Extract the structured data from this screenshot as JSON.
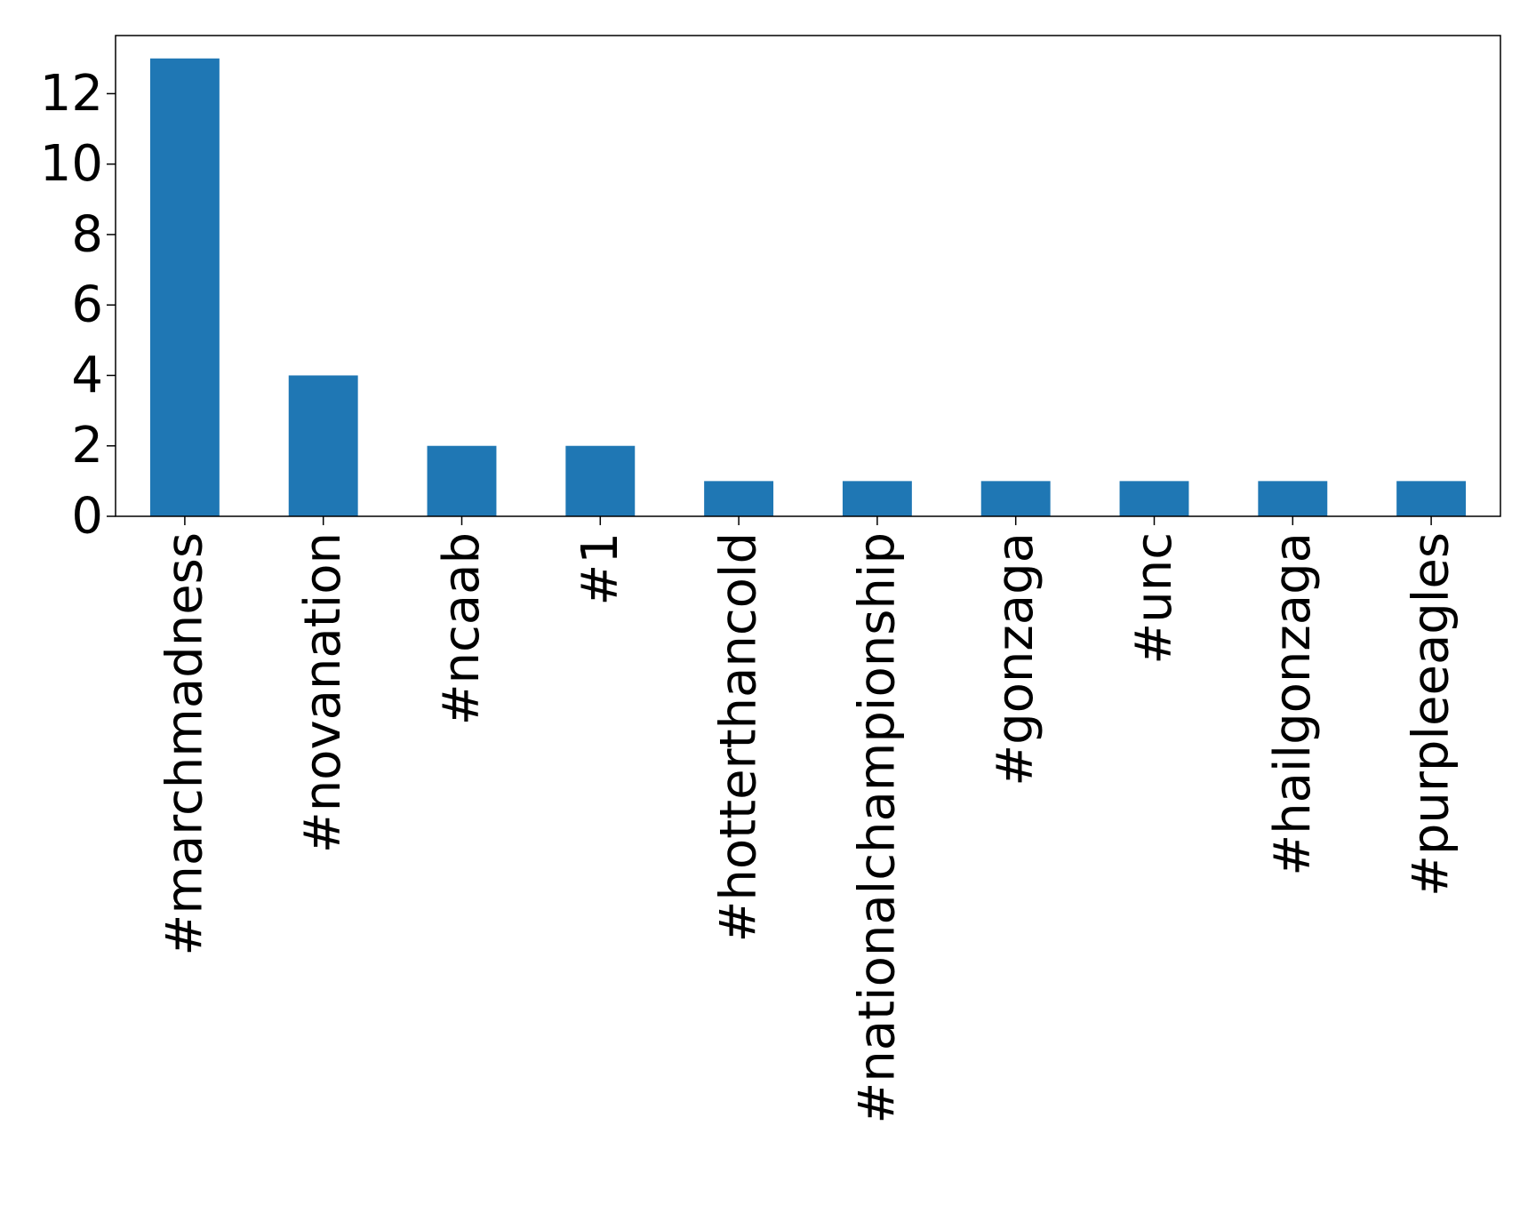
{
  "chart_data": {
    "type": "bar",
    "categories": [
      "#marchmadness",
      "#novanation",
      "#ncaab",
      "#1",
      "#hotterthancold",
      "#nationalchampionship",
      "#gonzaga",
      "#unc",
      "#hailgonzaga",
      "#purpleeagles"
    ],
    "values": [
      13,
      4,
      2,
      2,
      1,
      1,
      1,
      1,
      1,
      1
    ],
    "title": "",
    "xlabel": "",
    "ylabel": "",
    "ylim": [
      0,
      13.65
    ],
    "yticks": [
      0,
      2,
      4,
      6,
      8,
      10,
      12
    ],
    "grid": false,
    "legend": "none",
    "x_tick_rotation": "vertical",
    "colors": {
      "bar": "#1f77b4",
      "axes": "#000000",
      "background": "#ffffff"
    }
  }
}
